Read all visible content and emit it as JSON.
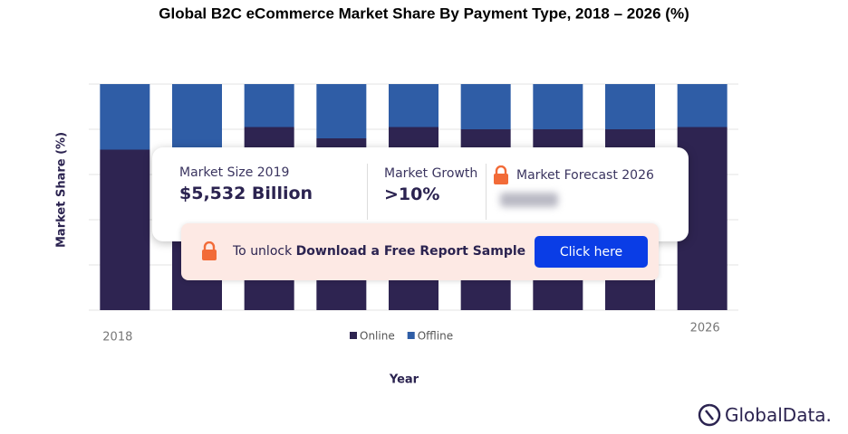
{
  "chart_data": {
    "type": "bar",
    "stacked": true,
    "title": "Global B2C eCommerce Market Share By Payment Type, 2018 – 2026 (%)",
    "x_label": "Year",
    "y_label": "Market Share (%)",
    "categories": [
      "2018",
      null,
      null,
      null,
      null,
      null,
      null,
      null,
      "2026"
    ],
    "series": [
      {
        "name": "Online",
        "color": "#2e2451",
        "values": [
          71,
          72,
          81,
          76,
          81,
          80,
          80,
          80,
          81
        ]
      },
      {
        "name": "Offline",
        "color": "#2f5da6",
        "values": [
          29,
          28,
          19,
          24,
          19,
          20,
          20,
          20,
          19
        ]
      }
    ],
    "ylim": [
      0,
      100
    ],
    "yticks": [
      0,
      20,
      40,
      60,
      80,
      100
    ],
    "grid": true,
    "legend": "bottom"
  },
  "overlay": {
    "market_size_label": "Market Size 2019",
    "market_size_value": "$5,532 Billion",
    "growth_label": "Market Growth",
    "growth_value": ">10%",
    "forecast_label": "Market Forecast 2026",
    "unlock_text": "To unlock",
    "unlock_bold": "Download a Free Report Sample",
    "button": "Click here"
  },
  "logo": "GlobalData."
}
